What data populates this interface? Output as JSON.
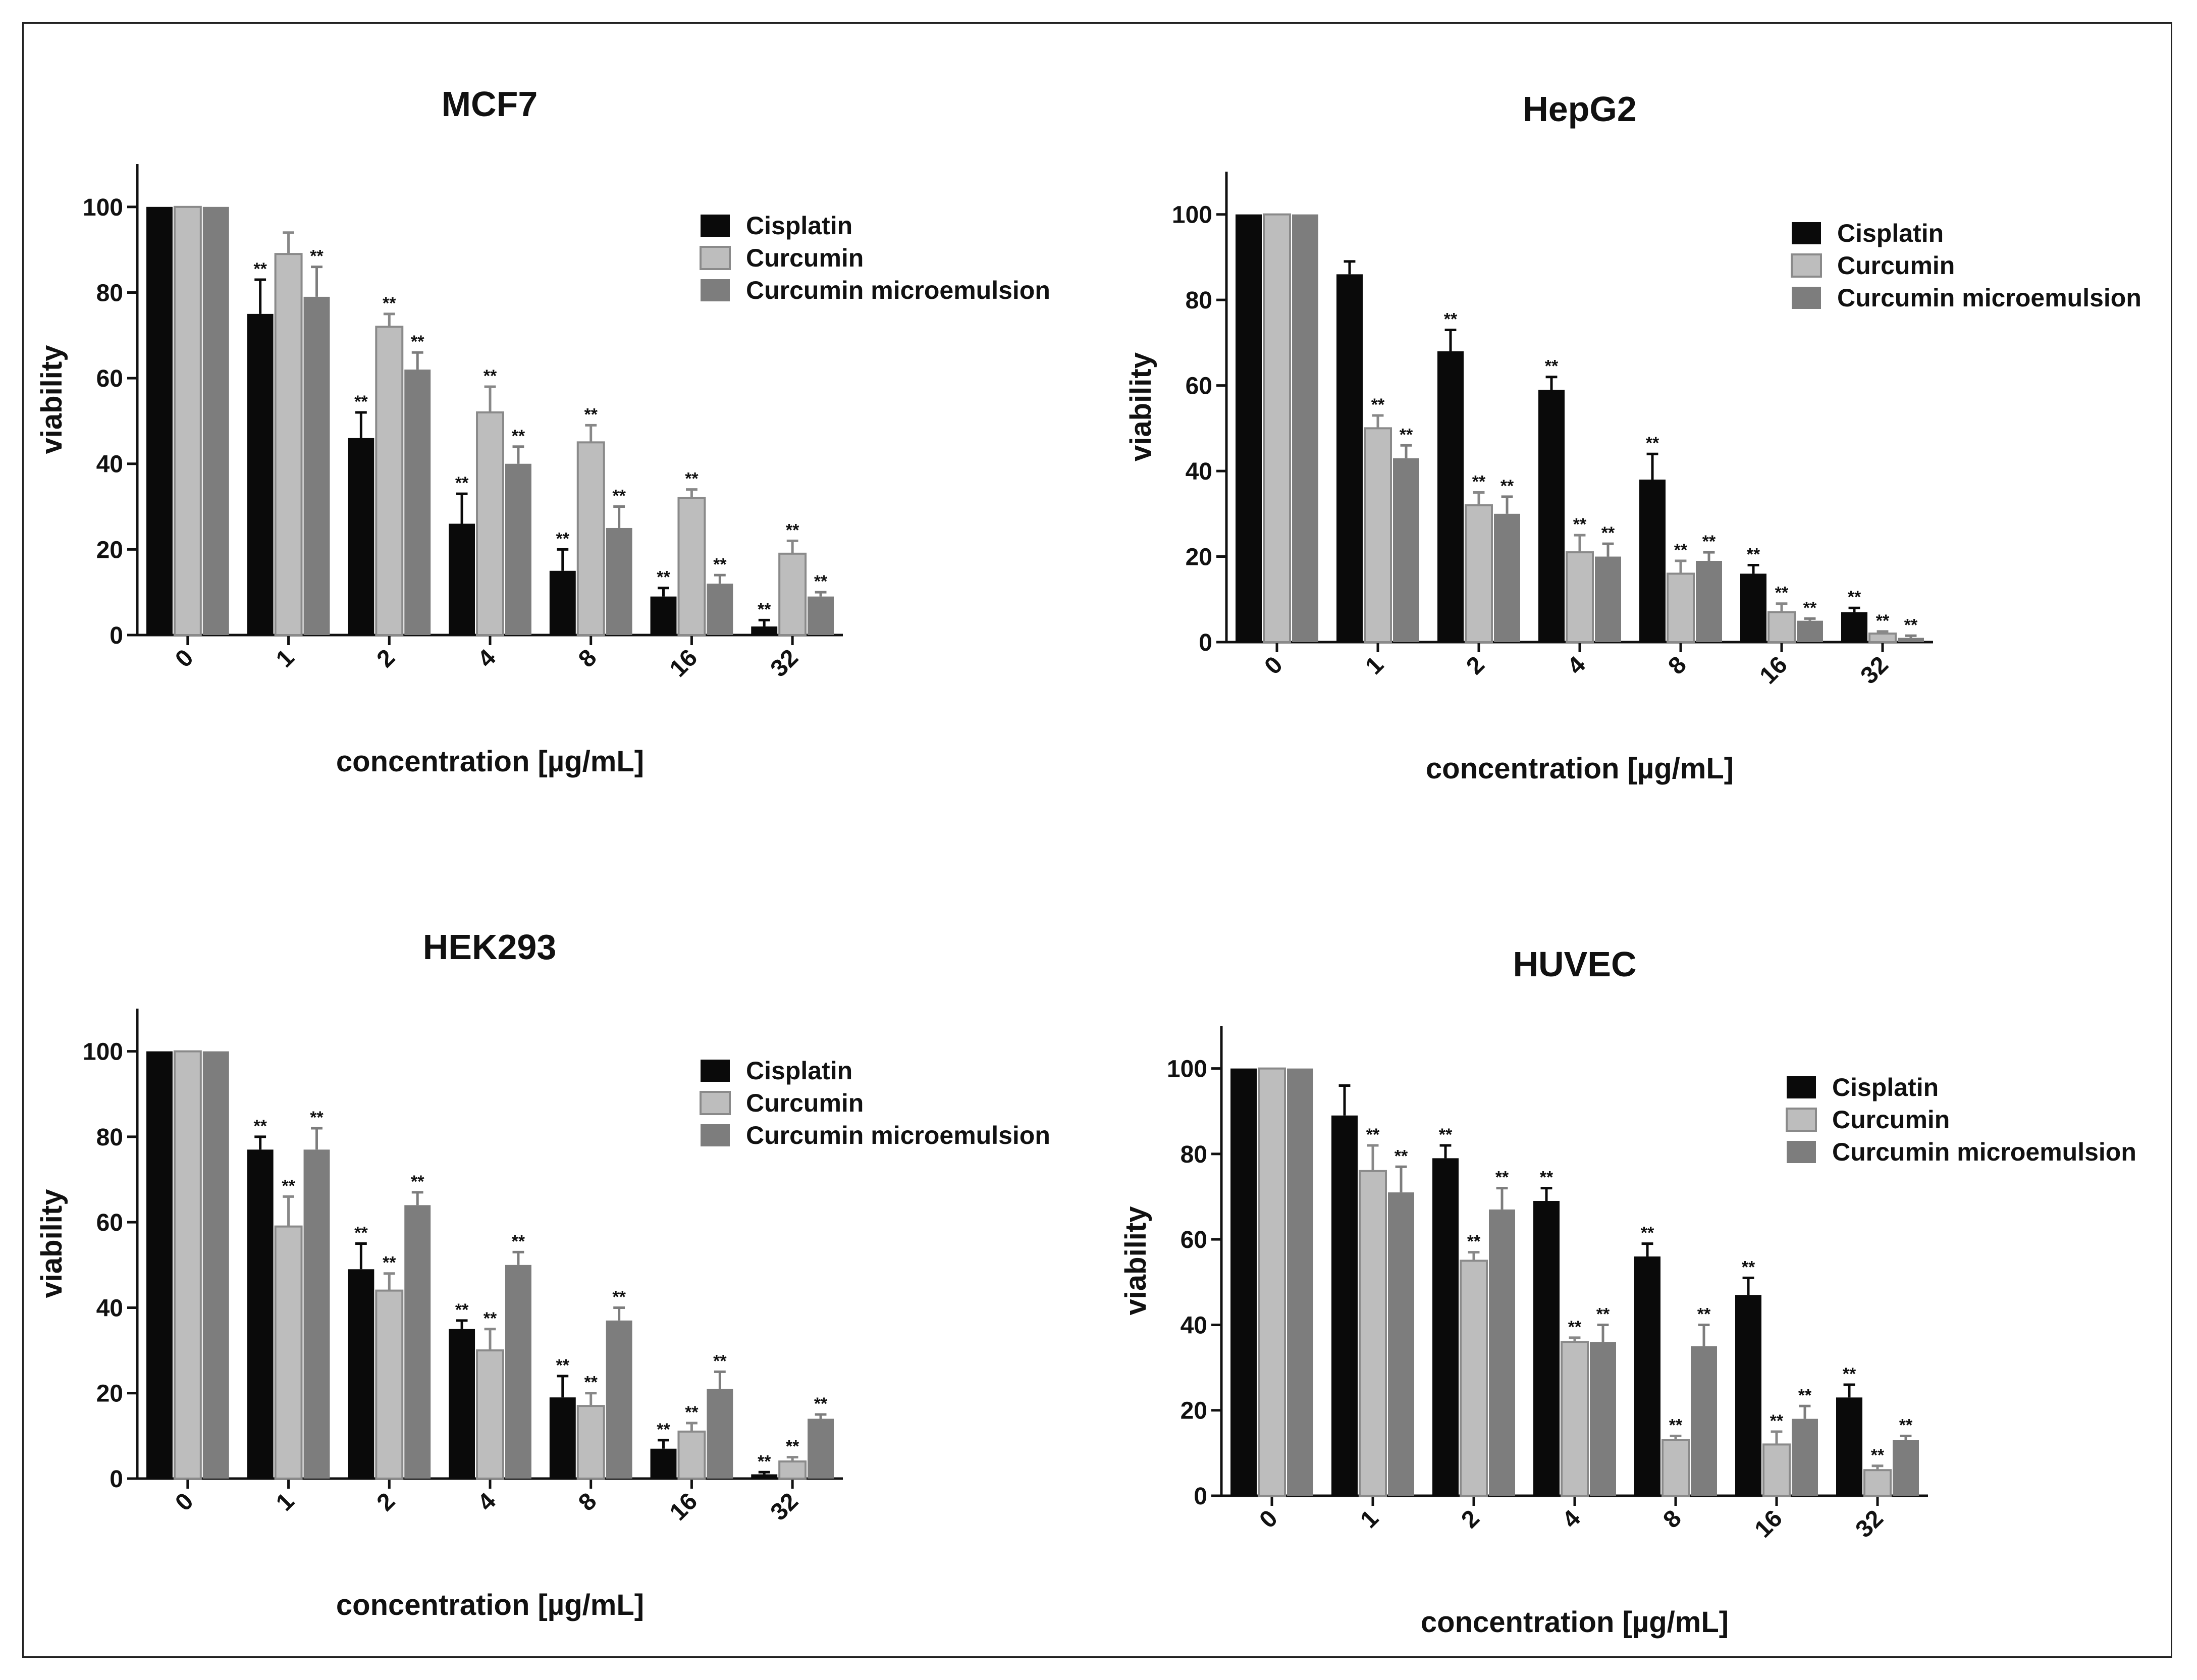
{
  "chart_data": [
    {
      "type": "bar",
      "title": "MCF7",
      "xlabel": "concentration [µg/mL]",
      "ylabel": "viability",
      "ylim": [
        0,
        110
      ],
      "yticks": [
        0,
        20,
        40,
        60,
        80,
        100
      ],
      "categories": [
        "0",
        "1",
        "2",
        "4",
        "8",
        "16",
        "32"
      ],
      "legend_position": "top-right",
      "significance_label": "**",
      "series": [
        {
          "name": "Cisplatin",
          "color": "#0a0a0a",
          "values": [
            100,
            75,
            46,
            26,
            15,
            9,
            2
          ],
          "errors": [
            0,
            8,
            6,
            7,
            5,
            2,
            1.5
          ],
          "significant": [
            false,
            true,
            true,
            true,
            true,
            true,
            true
          ]
        },
        {
          "name": "Curcumin",
          "color": "#bdbdbd",
          "values": [
            100,
            89,
            72,
            52,
            45,
            32,
            19
          ],
          "errors": [
            0,
            5,
            3,
            6,
            4,
            2,
            3
          ],
          "significant": [
            false,
            false,
            true,
            true,
            true,
            true,
            true
          ]
        },
        {
          "name": "Curcumin microemulsion",
          "color": "#7d7d7d",
          "values": [
            100,
            79,
            62,
            40,
            25,
            12,
            9
          ],
          "errors": [
            0,
            7,
            4,
            4,
            5,
            2,
            1
          ],
          "significant": [
            false,
            true,
            true,
            true,
            true,
            true,
            true
          ]
        }
      ]
    },
    {
      "type": "bar",
      "title": "HepG2",
      "xlabel": "concentration [µg/mL]",
      "ylabel": "viability",
      "ylim": [
        0,
        110
      ],
      "yticks": [
        0,
        20,
        40,
        60,
        80,
        100
      ],
      "categories": [
        "0",
        "1",
        "2",
        "4",
        "8",
        "16",
        "32"
      ],
      "legend_position": "top-right",
      "significance_label": "**",
      "series": [
        {
          "name": "Cisplatin",
          "color": "#0a0a0a",
          "values": [
            100,
            86,
            68,
            59,
            38,
            16,
            7
          ],
          "errors": [
            0,
            3,
            5,
            3,
            6,
            2,
            1
          ],
          "significant": [
            false,
            false,
            true,
            true,
            true,
            true,
            true
          ]
        },
        {
          "name": "Curcumin",
          "color": "#bdbdbd",
          "values": [
            100,
            50,
            32,
            21,
            16,
            7,
            2
          ],
          "errors": [
            0,
            3,
            3,
            4,
            3,
            2,
            0.5
          ],
          "significant": [
            false,
            true,
            true,
            true,
            true,
            true,
            true
          ]
        },
        {
          "name": "Curcumin microemulsion",
          "color": "#7d7d7d",
          "values": [
            100,
            43,
            30,
            20,
            19,
            5,
            1
          ],
          "errors": [
            0,
            3,
            4,
            3,
            2,
            0.5,
            0.5
          ],
          "significant": [
            false,
            true,
            true,
            true,
            true,
            true,
            true
          ]
        }
      ]
    },
    {
      "type": "bar",
      "title": "HEK293",
      "xlabel": "concentration [µg/mL]",
      "ylabel": "viability",
      "ylim": [
        0,
        110
      ],
      "yticks": [
        0,
        20,
        40,
        60,
        80,
        100
      ],
      "categories": [
        "0",
        "1",
        "2",
        "4",
        "8",
        "16",
        "32"
      ],
      "legend_position": "top-right",
      "significance_label": "**",
      "series": [
        {
          "name": "Cisplatin",
          "color": "#0a0a0a",
          "values": [
            100,
            77,
            49,
            35,
            19,
            7,
            1
          ],
          "errors": [
            0,
            3,
            6,
            2,
            5,
            2,
            0.5
          ],
          "significant": [
            false,
            true,
            true,
            true,
            true,
            true,
            true
          ]
        },
        {
          "name": "Curcumin",
          "color": "#bdbdbd",
          "values": [
            100,
            59,
            44,
            30,
            17,
            11,
            4
          ],
          "errors": [
            0,
            7,
            4,
            5,
            3,
            2,
            1
          ],
          "significant": [
            false,
            true,
            true,
            true,
            true,
            true,
            true
          ]
        },
        {
          "name": "Curcumin microemulsion",
          "color": "#7d7d7d",
          "values": [
            100,
            77,
            64,
            50,
            37,
            21,
            14
          ],
          "errors": [
            0,
            5,
            3,
            3,
            3,
            4,
            1
          ],
          "significant": [
            false,
            true,
            true,
            true,
            true,
            true,
            true
          ]
        }
      ]
    },
    {
      "type": "bar",
      "title": "HUVEC",
      "xlabel": "concentration [µg/mL]",
      "ylabel": "viability",
      "ylim": [
        0,
        110
      ],
      "yticks": [
        0,
        20,
        40,
        60,
        80,
        100
      ],
      "categories": [
        "0",
        "1",
        "2",
        "4",
        "8",
        "16",
        "32"
      ],
      "legend_position": "top-right",
      "significance_label": "**",
      "series": [
        {
          "name": "Cisplatin",
          "color": "#0a0a0a",
          "values": [
            100,
            89,
            79,
            69,
            56,
            47,
            23
          ],
          "errors": [
            0,
            7,
            3,
            3,
            3,
            4,
            3
          ],
          "significant": [
            false,
            false,
            true,
            true,
            true,
            true,
            true
          ]
        },
        {
          "name": "Curcumin",
          "color": "#bdbdbd",
          "values": [
            100,
            76,
            55,
            36,
            13,
            12,
            6
          ],
          "errors": [
            0,
            6,
            2,
            1,
            1,
            3,
            1
          ],
          "significant": [
            false,
            true,
            true,
            true,
            true,
            true,
            true
          ]
        },
        {
          "name": "Curcumin microemulsion",
          "color": "#7d7d7d",
          "values": [
            100,
            71,
            67,
            36,
            35,
            18,
            13
          ],
          "errors": [
            0,
            6,
            5,
            4,
            5,
            3,
            1
          ],
          "significant": [
            false,
            true,
            true,
            true,
            true,
            true,
            true
          ]
        }
      ]
    }
  ]
}
